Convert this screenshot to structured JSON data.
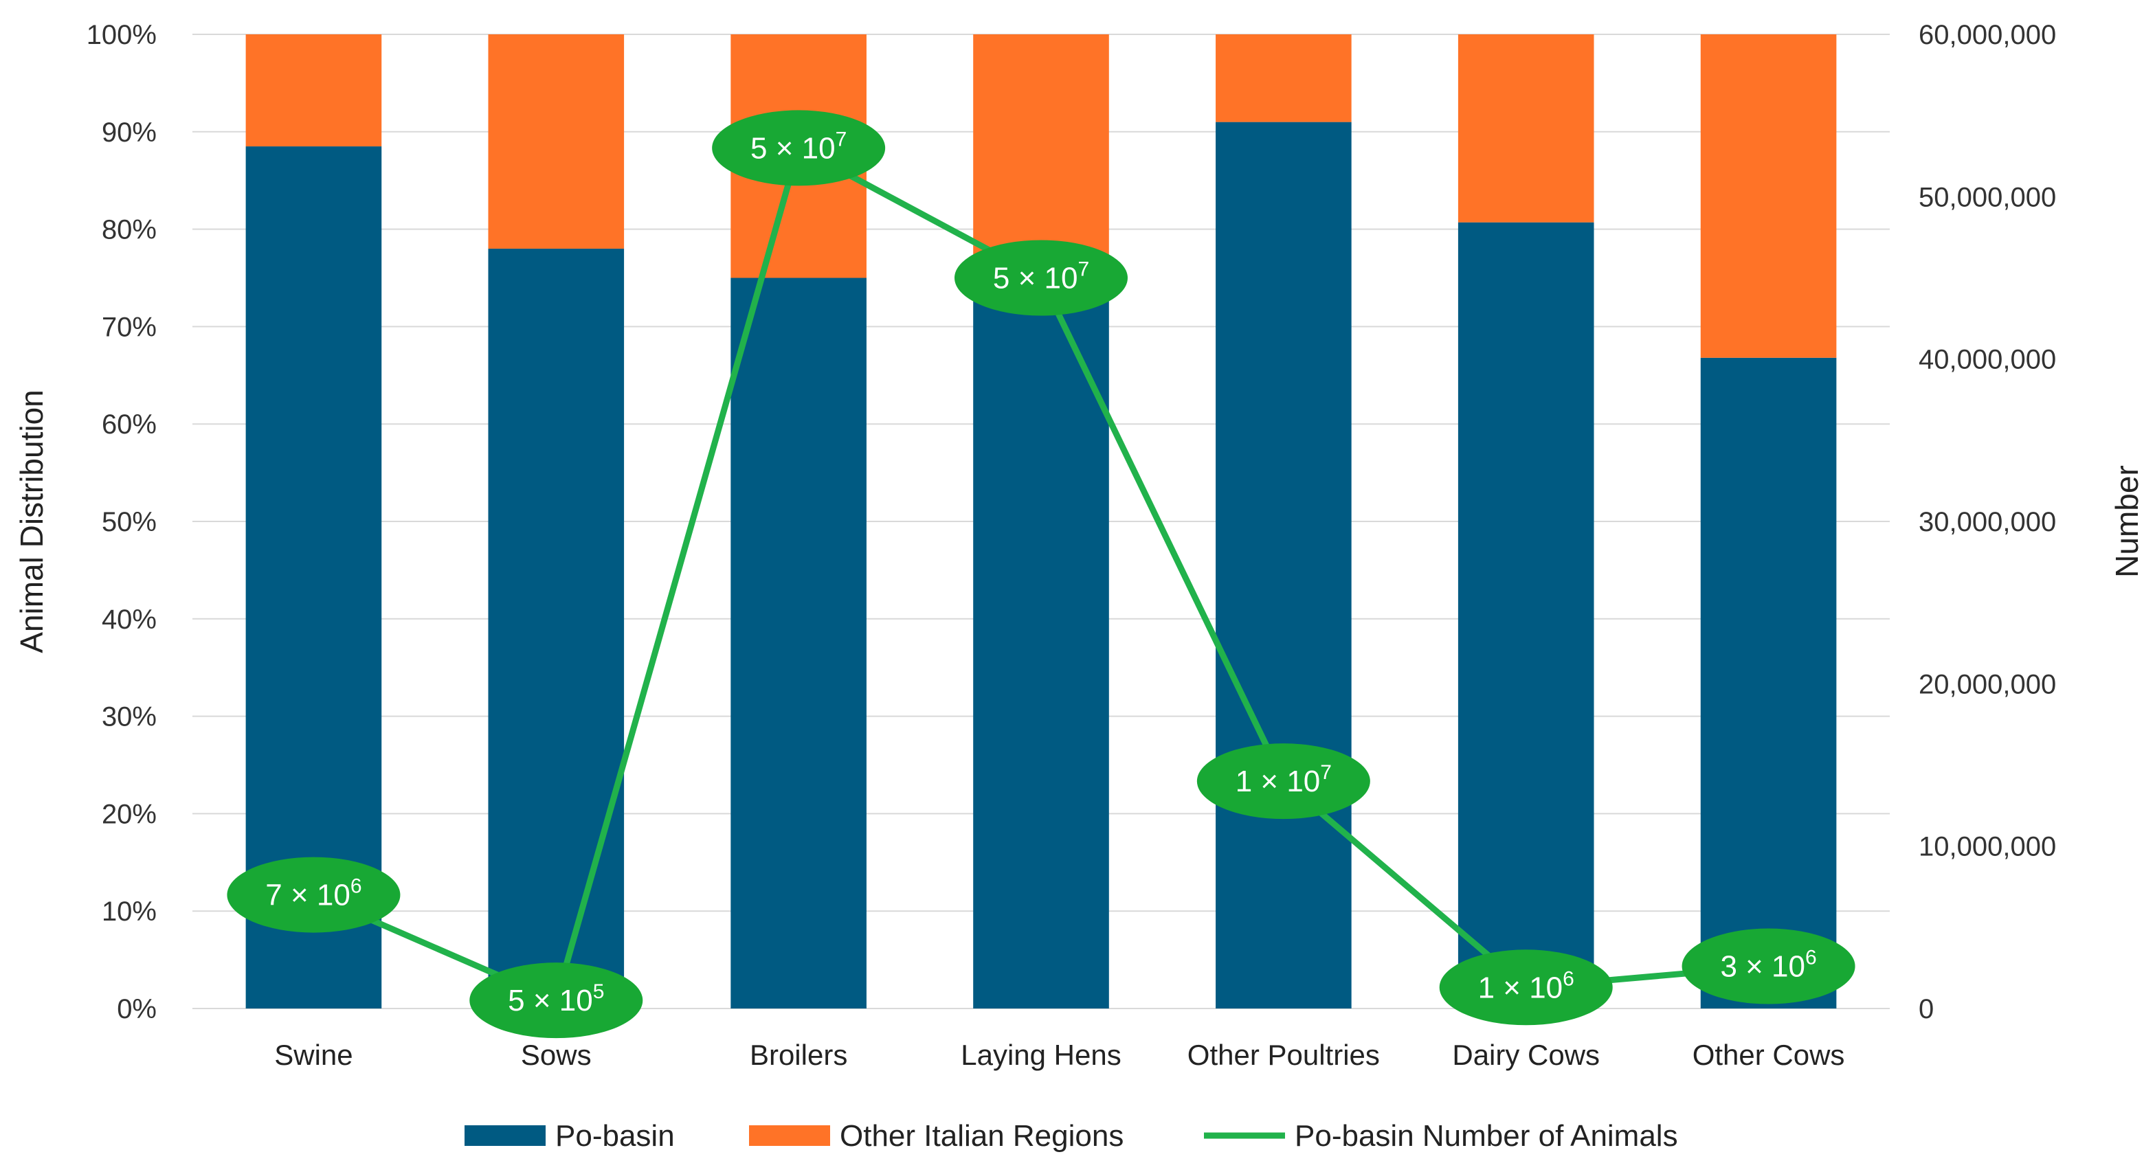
{
  "chart_data": {
    "type": "bar",
    "stacked": true,
    "categories": [
      "Swine",
      "Sows",
      "Broilers",
      "Laying Hens",
      "Other Poultries",
      "Dairy Cows",
      "Other Cows"
    ],
    "series": [
      {
        "name": "Po-basin",
        "axis": "left",
        "kind": "bar",
        "color": "#005A82",
        "values": [
          88.5,
          78,
          75,
          73,
          91,
          80.7,
          66.8
        ]
      },
      {
        "name": "Other Italian Regions",
        "axis": "left",
        "kind": "bar",
        "color": "#FF7327",
        "values": [
          11.5,
          22,
          25,
          27,
          9,
          19.3,
          33.2
        ]
      },
      {
        "name": "Po-basin Number of Animals",
        "axis": "right",
        "kind": "line",
        "color": "#21B24B",
        "values": [
          7000000,
          500000,
          53000000,
          45000000,
          14000000,
          1300000,
          2600000
        ]
      }
    ],
    "point_labels": [
      {
        "base": "7 × 10",
        "exp": "6"
      },
      {
        "base": "5 × 10",
        "exp": "5"
      },
      {
        "base": "5 × 10",
        "exp": "7"
      },
      {
        "base": "5 × 10",
        "exp": "7"
      },
      {
        "base": "1 × 10",
        "exp": "7"
      },
      {
        "base": "1 × 10",
        "exp": "6"
      },
      {
        "base": "3 × 10",
        "exp": "6"
      }
    ],
    "ylabel": "Animal Distribution",
    "y2label": "Number",
    "ylim": [
      0,
      100
    ],
    "y2lim": [
      0,
      60000000
    ],
    "yticks": [
      "0%",
      "10%",
      "20%",
      "30%",
      "40%",
      "50%",
      "60%",
      "70%",
      "80%",
      "90%",
      "100%"
    ],
    "y2ticks": [
      "0",
      "10,000,000",
      "20,000,000",
      "30,000,000",
      "40,000,000",
      "50,000,000",
      "60,000,000"
    ],
    "grid": true,
    "legend": "bottom",
    "bubble_color": "#18A834"
  }
}
